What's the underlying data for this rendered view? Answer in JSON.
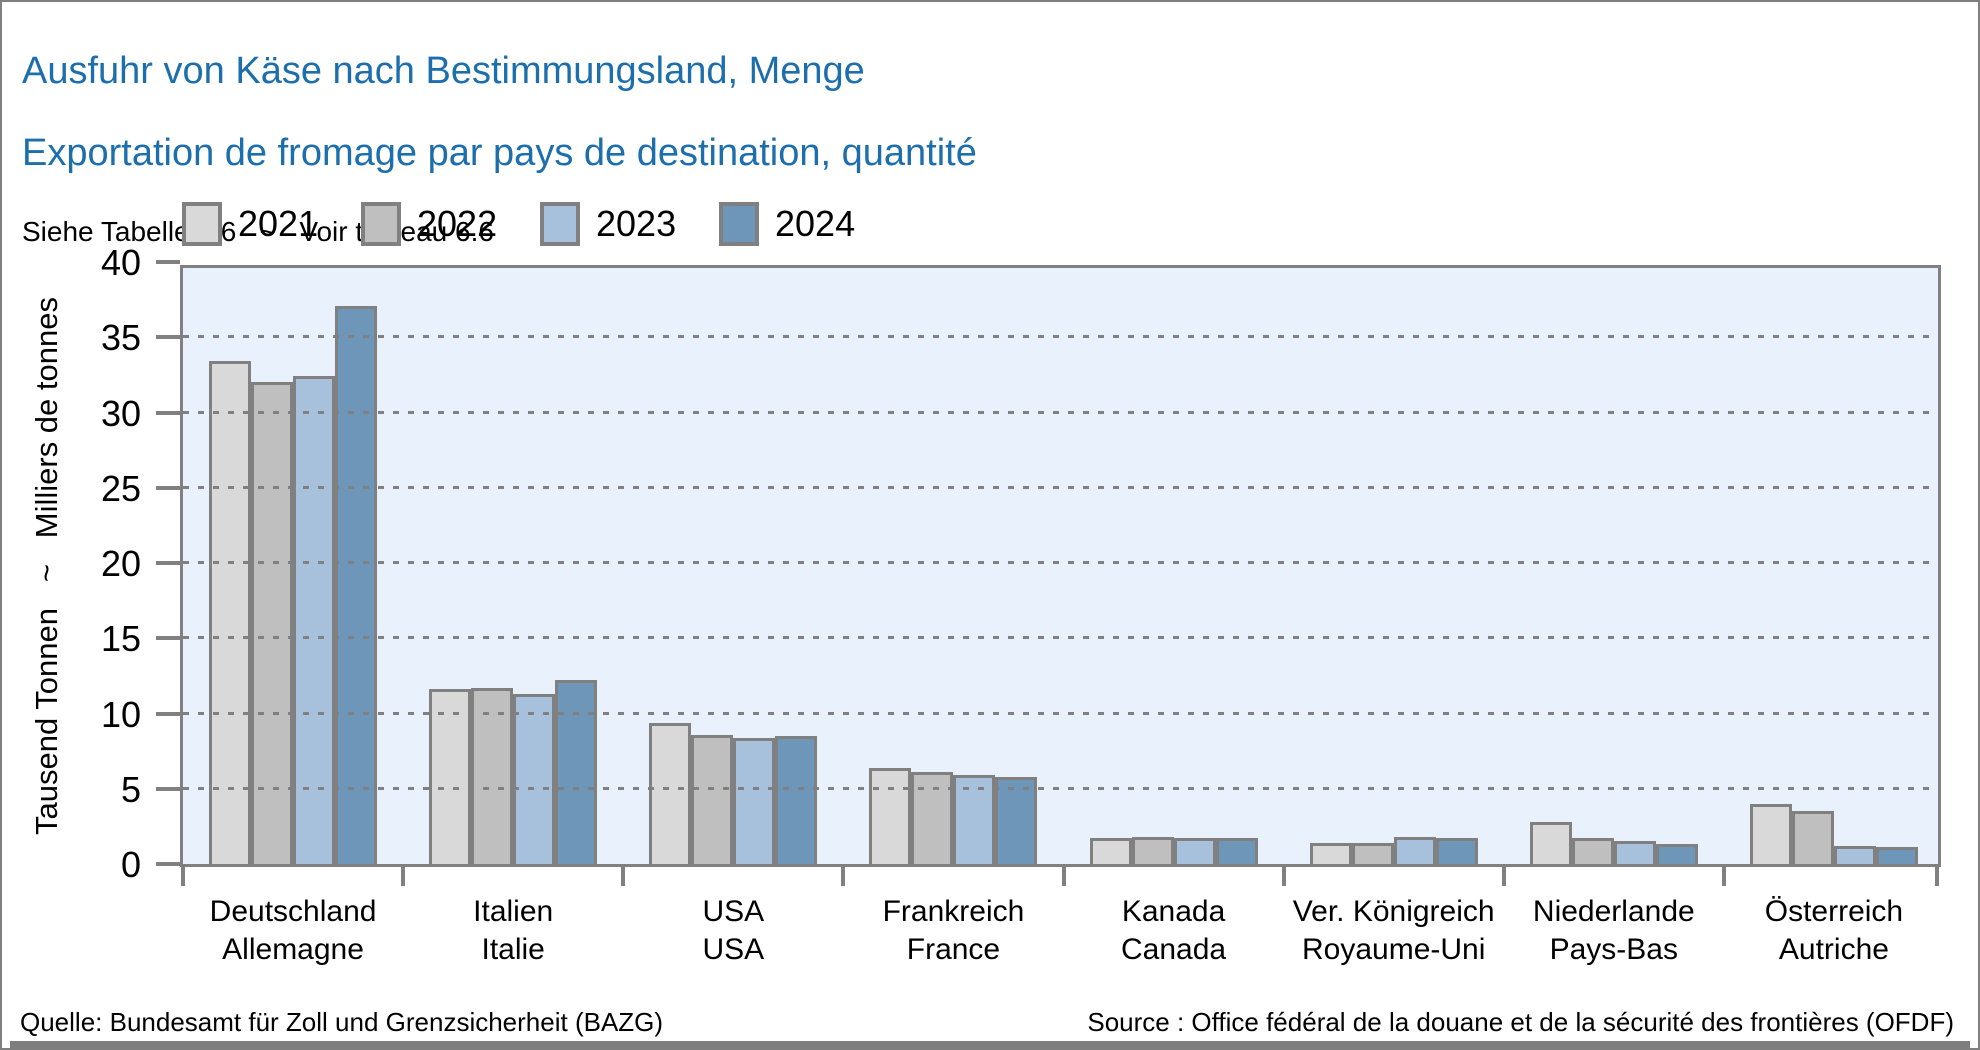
{
  "header": {
    "title_de": "Ausfuhr von Käse nach Bestimmungsland, Menge",
    "title_fr": "Exportation de fromage par pays de destination, quantité",
    "note": "Siehe Tabelle 6.6   ~   Voir tableau 6.6"
  },
  "y_axis_title": "Tausend Tonnen   ~   Milliers de tonnes",
  "chart_data": {
    "type": "bar",
    "title": "Ausfuhr von Käse nach Bestimmungsland, Menge / Exportation de fromage par pays de destination, quantité",
    "ylabel": "Tausend Tonnen ~ Milliers de tonnes",
    "xlabel": "",
    "ylim": [
      0,
      40
    ],
    "ytick_step": 5,
    "grid": "horizontal dotted",
    "legend_position": "top-left",
    "categories": [
      {
        "de": "Deutschland",
        "fr": "Allemagne"
      },
      {
        "de": "Italien",
        "fr": "Italie"
      },
      {
        "de": "USA",
        "fr": "USA"
      },
      {
        "de": "Frankreich",
        "fr": "France"
      },
      {
        "de": "Kanada",
        "fr": "Canada"
      },
      {
        "de": "Ver. Königreich",
        "fr": "Royaume-Uni"
      },
      {
        "de": "Niederlande",
        "fr": "Pays-Bas"
      },
      {
        "de": "Österreich",
        "fr": "Autriche"
      }
    ],
    "series": [
      {
        "name": "2021",
        "color": "#d9d9d9",
        "values": [
          33.4,
          11.6,
          9.4,
          6.4,
          1.7,
          1.4,
          2.8,
          4.0
        ]
      },
      {
        "name": "2022",
        "color": "#bfbfbf",
        "values": [
          32.0,
          11.7,
          8.6,
          6.1,
          1.8,
          1.4,
          1.7,
          3.5
        ]
      },
      {
        "name": "2023",
        "color": "#a7c1dd",
        "values": [
          32.4,
          11.3,
          8.4,
          5.9,
          1.7,
          1.8,
          1.5,
          1.2
        ]
      },
      {
        "name": "2024",
        "color": "#6d96b8",
        "values": [
          37.1,
          12.2,
          8.5,
          5.8,
          1.7,
          1.7,
          1.3,
          1.1
        ]
      }
    ]
  },
  "footer": {
    "source_de": "Quelle: Bundesamt für Zoll und Grenzsicherheit (BAZG)",
    "source_fr": "Source : Office fédéral de la douane et de la sécurité des frontières (OFDF)"
  },
  "colors": {
    "title_blue": "#1c6fac",
    "plot_background": "#e9f2fc",
    "axis_gray": "#808080",
    "series_2021": "#d9d9d9",
    "series_2022": "#bfbfbf",
    "series_2023": "#a7c1dd",
    "series_2024": "#6d96b8"
  }
}
